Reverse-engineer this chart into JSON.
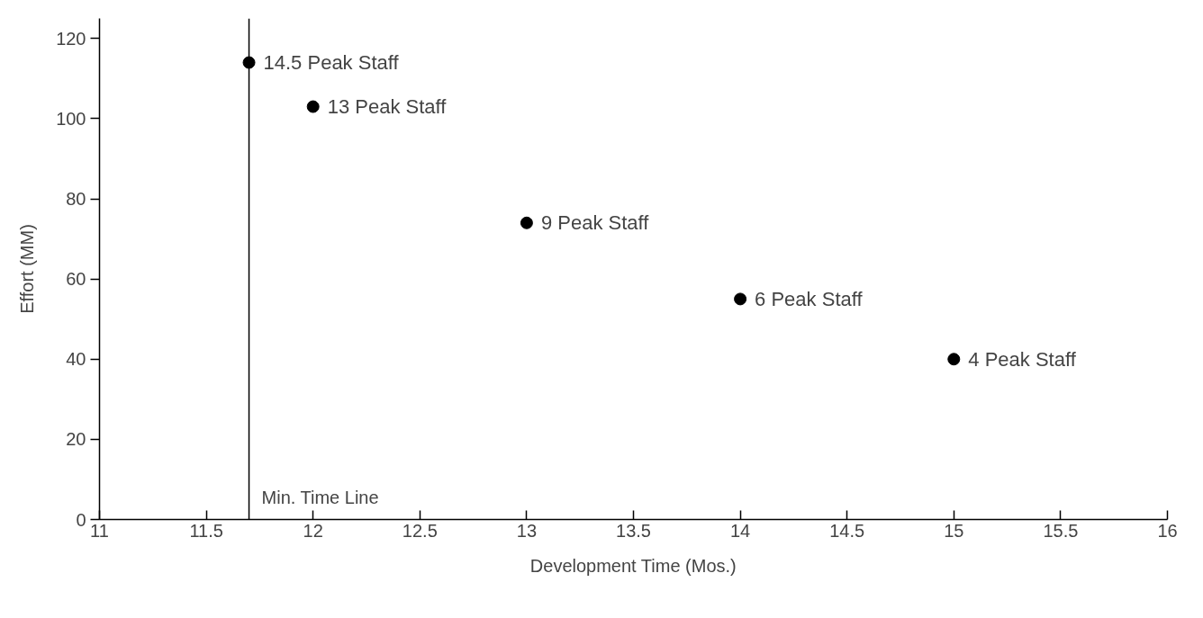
{
  "chart_data": {
    "type": "scatter",
    "xlabel": "Development Time (Mos.)",
    "ylabel": "Effort (MM)",
    "x": [
      11.7,
      12,
      13,
      14,
      15
    ],
    "values": [
      114,
      103,
      74,
      55,
      40
    ],
    "color": "#000000",
    "marker": "circle",
    "grid": false,
    "xlim": [
      11,
      16
    ],
    "ylim": [
      0,
      125
    ],
    "xticks": [
      11,
      11.5,
      12,
      12.5,
      13,
      13.5,
      14,
      14.5,
      15,
      15.5,
      16
    ],
    "yticks": [
      0,
      20,
      40,
      60,
      80,
      100,
      120
    ],
    "ref_lines": [
      {
        "axis": "x",
        "value": 11.7,
        "label": "Min. Time Line",
        "color": "#000000"
      }
    ],
    "annotations": [
      {
        "text": "14.5 Peak Staff",
        "x": 11.7,
        "y": 114
      },
      {
        "text": "13 Peak Staff",
        "x": 12,
        "y": 103
      },
      {
        "text": "9 Peak Staff",
        "x": 13,
        "y": 74
      },
      {
        "text": "6 Peak Staff",
        "x": 14,
        "y": 55
      },
      {
        "text": "4 Peak Staff",
        "x": 15,
        "y": 40
      }
    ]
  }
}
